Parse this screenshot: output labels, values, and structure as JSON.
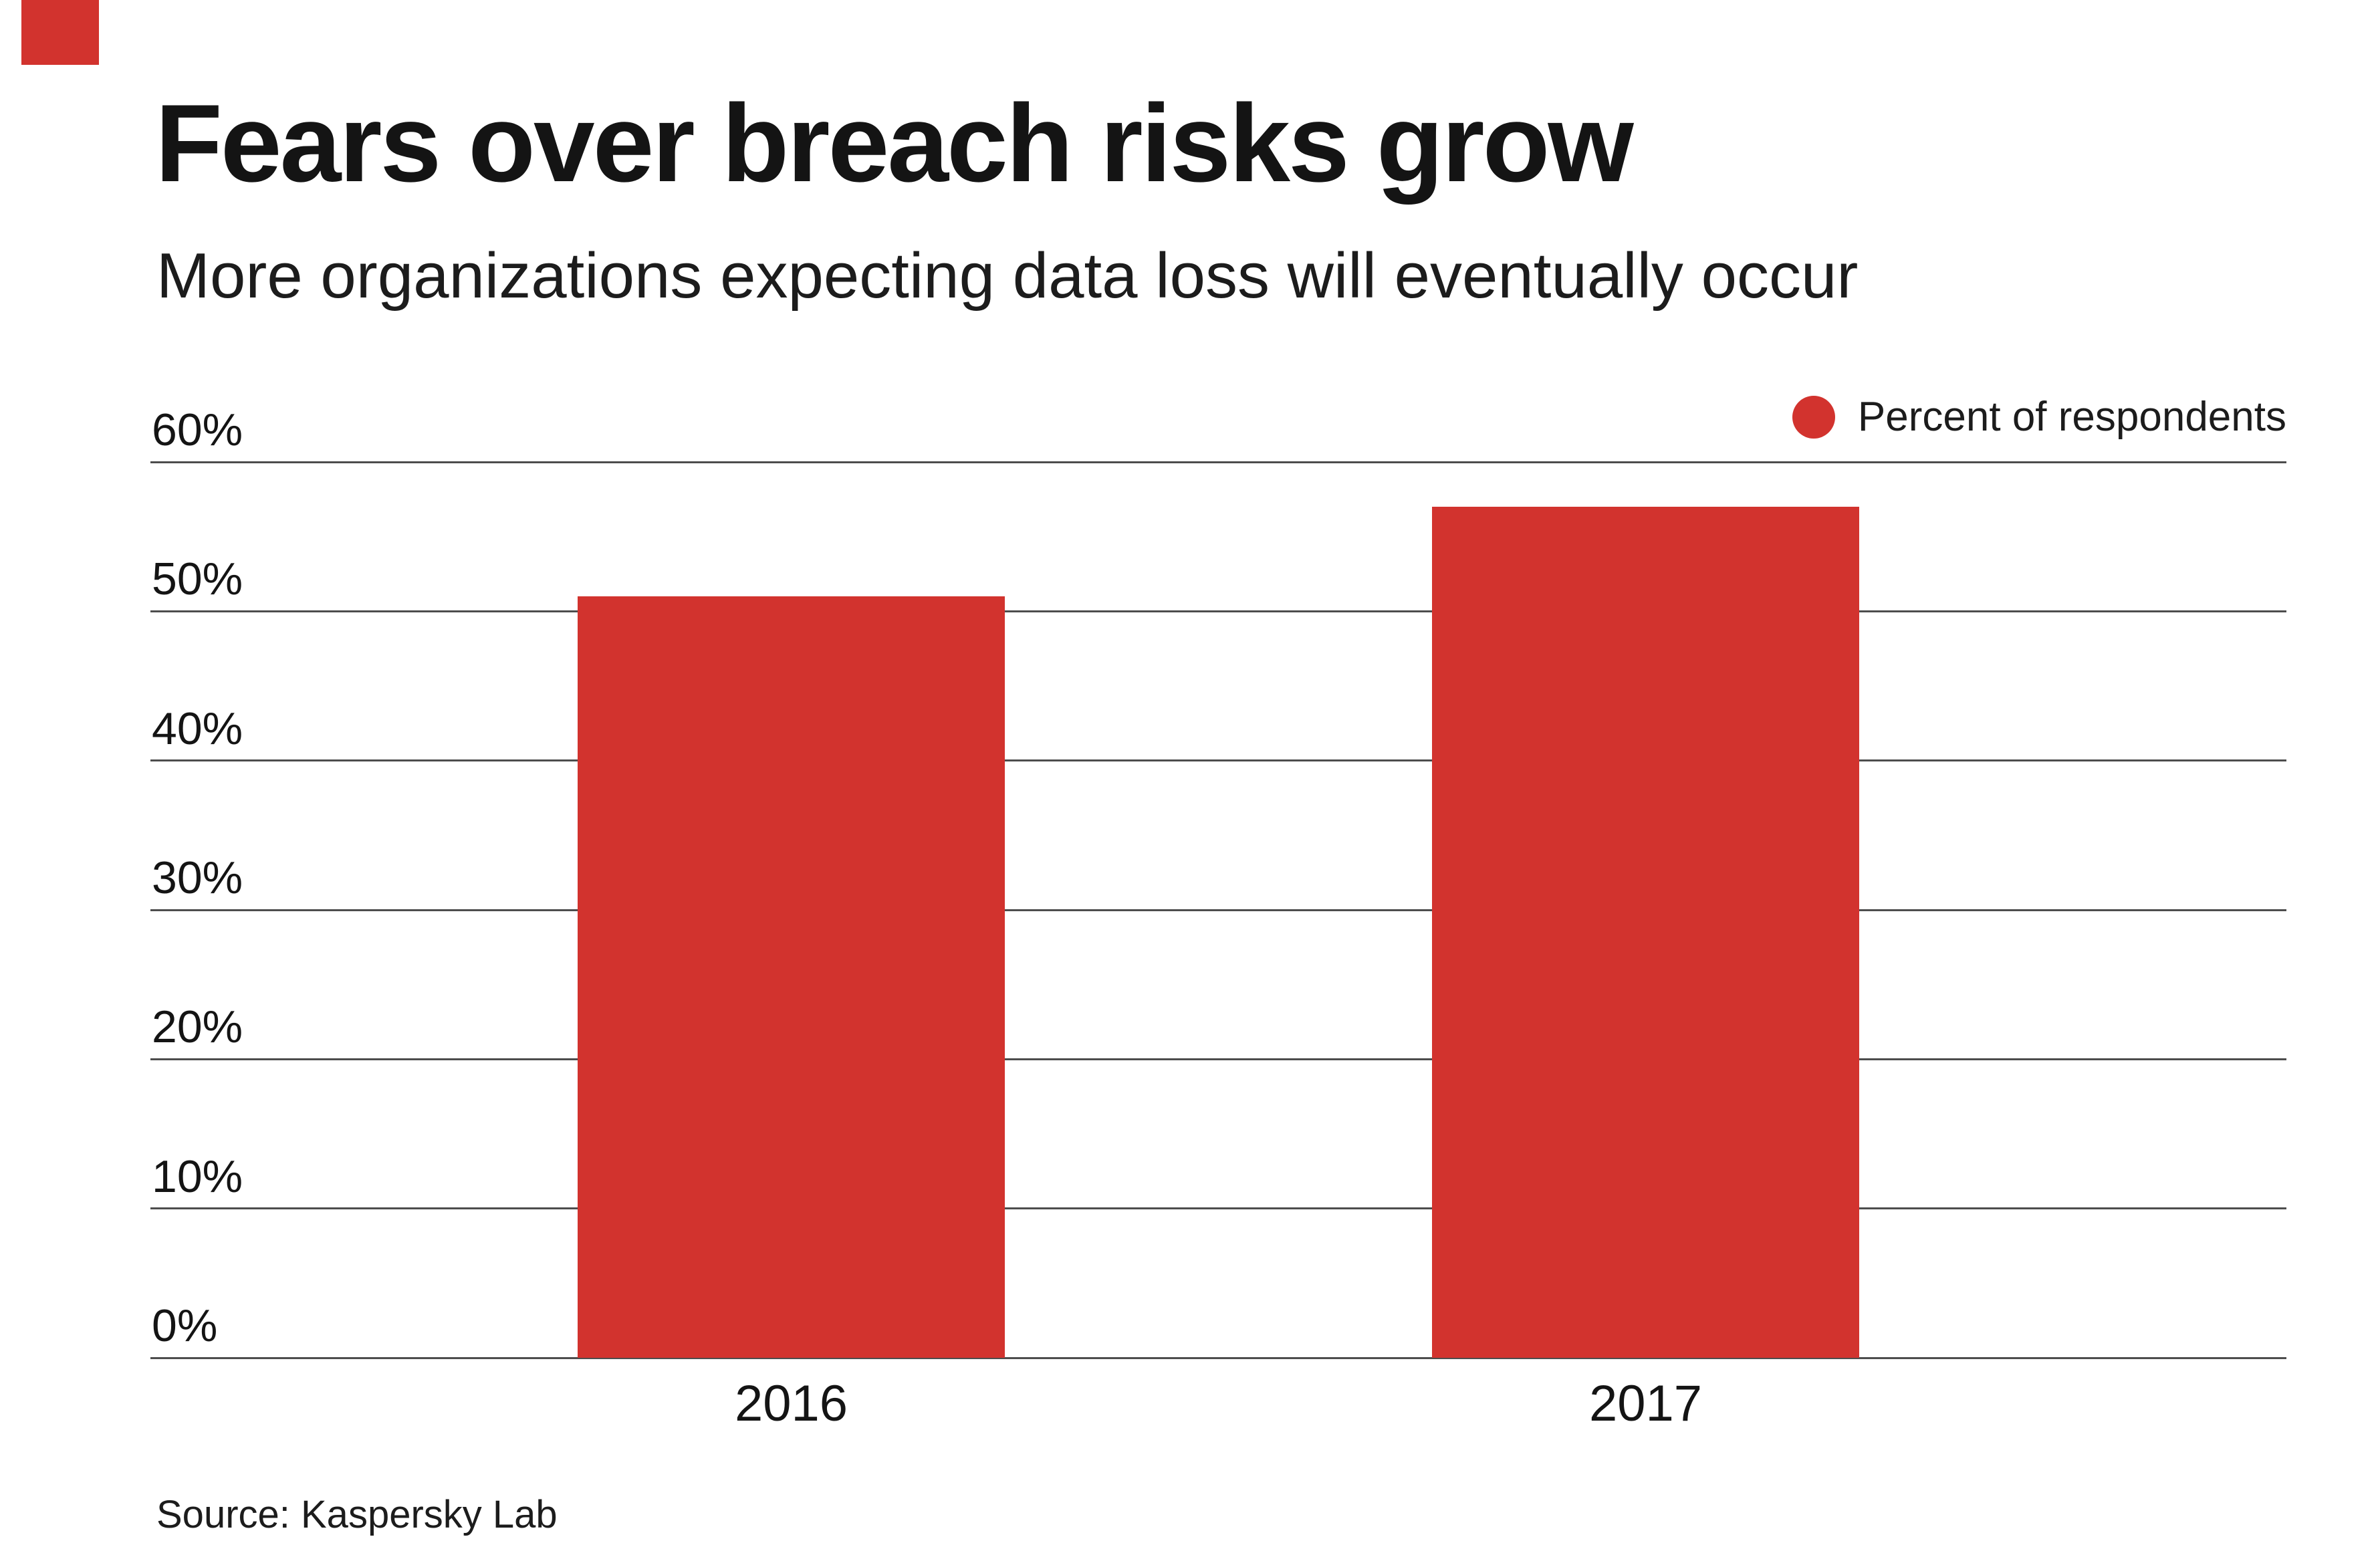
{
  "accent_color": "#d2332e",
  "header": {
    "title": "Fears over breach risks grow",
    "subtitle": "More organizations expecting data loss will eventually occur"
  },
  "legend": {
    "label": "Percent of respondents"
  },
  "source": "Source: Kaspersky Lab",
  "chart_data": {
    "type": "bar",
    "categories": [
      "2016",
      "2017"
    ],
    "values": [
      51,
      57
    ],
    "series_name": "Percent of respondents",
    "title": "Fears over breach risks grow",
    "subtitle": "More organizations expecting data loss will eventually occur",
    "xlabel": "",
    "ylabel": "",
    "ylim": [
      0,
      60
    ],
    "ytick_step": 10,
    "ytick_labels": [
      "0%",
      "10%",
      "20%",
      "30%",
      "40%",
      "50%",
      "60%"
    ],
    "grid": true,
    "grid_color": "#4d4d4d",
    "bar_color": "#d2332e",
    "legend_position": "top-right",
    "bar_center_fractions": [
      0.3,
      0.7
    ],
    "bar_width_fraction": 0.2
  }
}
